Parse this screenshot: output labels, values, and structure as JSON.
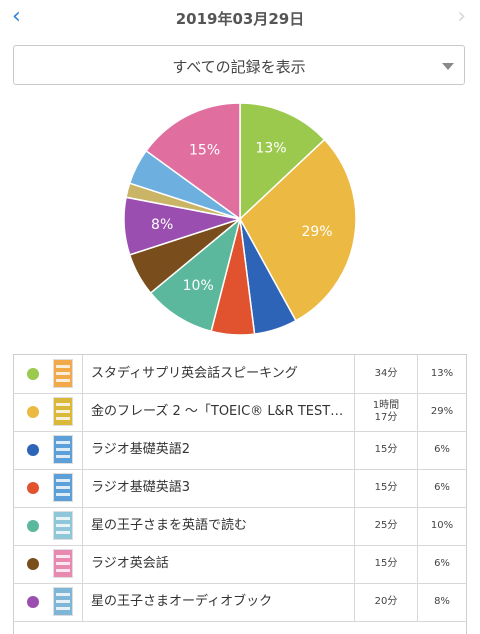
{
  "header": {
    "title": "2019年03月29日",
    "back_icon": "‹",
    "forward_icon": "›",
    "accent": "#2f7de1"
  },
  "filter": {
    "selected": "すべての記録を表示"
  },
  "chart_data": {
    "type": "pie",
    "slices": [
      {
        "value": 13,
        "color": "#9bc94d",
        "label": "13%"
      },
      {
        "value": 29,
        "color": "#ecb942",
        "label": "29%"
      },
      {
        "value": 6,
        "color": "#2e64b8",
        "label": ""
      },
      {
        "value": 6,
        "color": "#e0532e",
        "label": ""
      },
      {
        "value": 10,
        "color": "#5cb89c",
        "label": "10%"
      },
      {
        "value": 6,
        "color": "#7a4e1c",
        "label": ""
      },
      {
        "value": 8,
        "color": "#9a4fb0",
        "label": "8%"
      },
      {
        "value": 2,
        "color": "#c9b565",
        "label": ""
      },
      {
        "value": 5,
        "color": "#6db0e0",
        "label": ""
      },
      {
        "value": 15,
        "color": "#e06fa0",
        "label": "15%"
      }
    ]
  },
  "records": [
    {
      "title": "スタディサプリ英会話スピーキング",
      "time": "34分",
      "percent": "13%",
      "color": "#9bc94d",
      "cover": "#f1a94a"
    },
    {
      "title": "金のフレーズ 2 〜「TOEIC® L&R TEST…",
      "time": "1時間\n17分",
      "percent": "29%",
      "color": "#ecb942",
      "cover": "#d9b83a"
    },
    {
      "title": "ラジオ基礎英語2",
      "time": "15分",
      "percent": "6%",
      "color": "#2e64b8",
      "cover": "#5d9fd8"
    },
    {
      "title": "ラジオ基礎英語3",
      "time": "15分",
      "percent": "6%",
      "color": "#e0532e",
      "cover": "#5d9fd8"
    },
    {
      "title": "星の王子さまを英語で読む",
      "time": "25分",
      "percent": "10%",
      "color": "#5cb89c",
      "cover": "#8fc7d8"
    },
    {
      "title": "ラジオ英会話",
      "time": "15分",
      "percent": "6%",
      "color": "#7a4e1c",
      "cover": "#e889b2"
    },
    {
      "title": "星の王子さまオーディオブック",
      "time": "20分",
      "percent": "8%",
      "color": "#9a4fb0",
      "cover": "#7fb6d8"
    }
  ]
}
